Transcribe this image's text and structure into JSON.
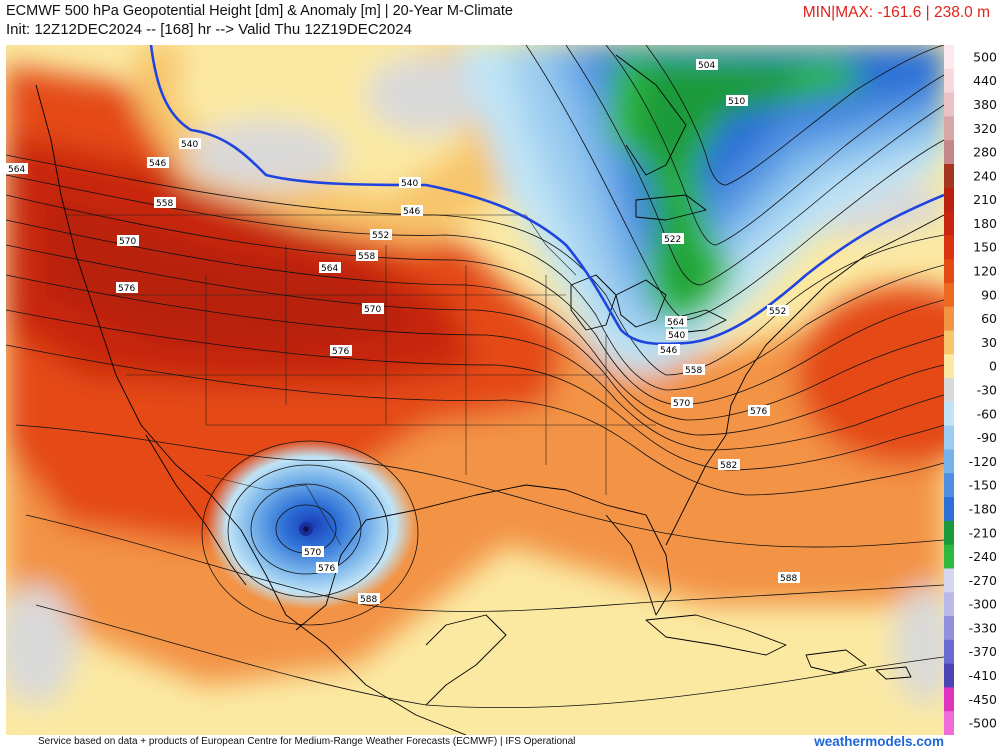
{
  "header": {
    "title": "ECMWF 500 hPa Geopotential Height [dm] & Anomaly [m] | 20-Year M-Climate",
    "init_line": "Init: 12Z12DEC2024 -- [168] hr --> Valid Thu 12Z19DEC2024",
    "minmax": "MIN|MAX: -161.6 | 238.0 m"
  },
  "map": {
    "region": "North America",
    "contour_labels": [
      "504",
      "510",
      "522",
      "540",
      "540",
      "546",
      "546",
      "552",
      "552",
      "558",
      "558",
      "564",
      "564",
      "570",
      "570",
      "570",
      "570",
      "576",
      "576",
      "576",
      "576",
      "582",
      "588",
      "588",
      "546",
      "558",
      "564",
      "540"
    ]
  },
  "colorbar": {
    "ticks": [
      "500",
      "440",
      "380",
      "320",
      "280",
      "240",
      "210",
      "180",
      "150",
      "120",
      "90",
      "60",
      "30",
      "0",
      "-30",
      "-60",
      "-90",
      "-120",
      "-150",
      "-180",
      "-210",
      "-240",
      "-270",
      "-300",
      "-330",
      "-370",
      "-410",
      "-450",
      "-500"
    ],
    "colors": [
      "#fbe9ee",
      "#f5d9dc",
      "#ebc2c3",
      "#d9a7a8",
      "#c58888",
      "#a4371e",
      "#b8220f",
      "#c8250f",
      "#d9340f",
      "#e44a12",
      "#ec6a20",
      "#f39344",
      "#f7c56a",
      "#fbe9a2",
      "#d9d9d9",
      "#c0e4f6",
      "#9ccdf0",
      "#75b1ea",
      "#4d8fe0",
      "#2c6fd6",
      "#1a9a3a",
      "#2eb83e",
      "#d6d6f0",
      "#b9b9ea",
      "#9090dc",
      "#6b6ad0",
      "#4a45b4",
      "#e033c0",
      "#f06ad8"
    ],
    "accent_height": "#1f44e0"
  },
  "footer": {
    "credit": "Service based on data + products of European Centre for Medium-Range Weather Forecasts (ECMWF) | IFS Operational",
    "site": "weathermodels.com"
  }
}
